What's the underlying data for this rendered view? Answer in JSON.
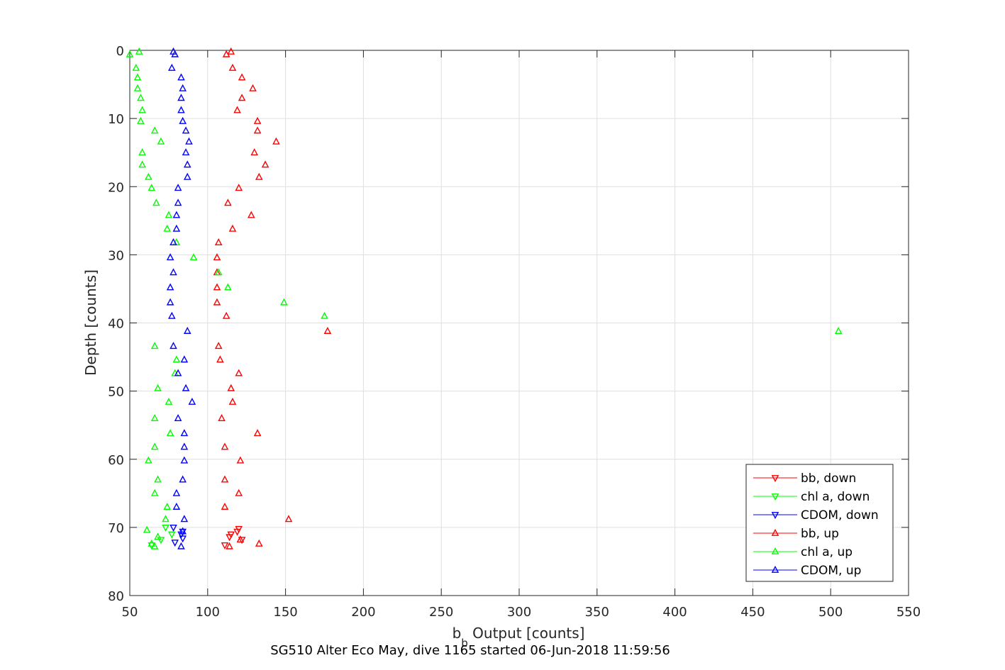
{
  "chart_data": {
    "type": "scatter",
    "title": "",
    "caption": "SG510 Alter Eco May, dive 1165 started 06-Jun-2018 11:59:56",
    "xlabel_main": "b",
    "xlabel_sub": "b",
    "xlabel_rest": " Output [counts]",
    "ylabel": "Depth [counts]",
    "xlim": [
      50,
      550
    ],
    "ylim": [
      0,
      80
    ],
    "y_reversed": true,
    "grid": true,
    "x_ticks": [
      "50",
      "100",
      "150",
      "200",
      "250",
      "300",
      "350",
      "400",
      "450",
      "500",
      "550"
    ],
    "y_ticks": [
      "0",
      "10",
      "20",
      "30",
      "40",
      "50",
      "60",
      "70",
      "80"
    ],
    "legend_position": "bottom-right",
    "series": [
      {
        "name": "bb, down",
        "color": "#ff0000",
        "marker": "triangle-down",
        "points": [
          [
            120,
            70.2
          ],
          [
            119,
            70.6
          ],
          [
            115,
            71.0
          ],
          [
            114,
            71.4
          ],
          [
            122,
            71.8
          ],
          [
            111,
            72.6
          ]
        ]
      },
      {
        "name": "chl a, down",
        "color": "#00ff00",
        "marker": "triangle-down",
        "points": [
          [
            73,
            70.0
          ],
          [
            77,
            71.0
          ],
          [
            70,
            71.8
          ],
          [
            64,
            72.6
          ]
        ]
      },
      {
        "name": "CDOM, down",
        "color": "#0000ff",
        "marker": "triangle-down",
        "points": [
          [
            78,
            70.0
          ],
          [
            84,
            70.6
          ],
          [
            83,
            71.0
          ],
          [
            84,
            71.6
          ],
          [
            79,
            72.2
          ]
        ]
      },
      {
        "name": "bb, up",
        "color": "#ff0000",
        "marker": "triangle-up",
        "points": [
          [
            115,
            0.2
          ],
          [
            112,
            0.6
          ],
          [
            116,
            2.6
          ],
          [
            122,
            4.0
          ],
          [
            129,
            5.6
          ],
          [
            122,
            7.0
          ],
          [
            119,
            8.8
          ],
          [
            132,
            10.4
          ],
          [
            132,
            11.8
          ],
          [
            144,
            13.4
          ],
          [
            130,
            15.0
          ],
          [
            137,
            16.8
          ],
          [
            133,
            18.6
          ],
          [
            120,
            20.2
          ],
          [
            113,
            22.4
          ],
          [
            128,
            24.2
          ],
          [
            116,
            26.2
          ],
          [
            107,
            28.2
          ],
          [
            106,
            30.4
          ],
          [
            106,
            32.6
          ],
          [
            106,
            34.8
          ],
          [
            106,
            37.0
          ],
          [
            112,
            39.0
          ],
          [
            177,
            41.2
          ],
          [
            107,
            43.4
          ],
          [
            108,
            45.4
          ],
          [
            120,
            47.4
          ],
          [
            115,
            49.6
          ],
          [
            116,
            51.6
          ],
          [
            109,
            54.0
          ],
          [
            132,
            56.2
          ],
          [
            111,
            58.2
          ],
          [
            121,
            60.2
          ],
          [
            111,
            63.0
          ],
          [
            120,
            65.0
          ],
          [
            111,
            67.0
          ],
          [
            152,
            68.8
          ],
          [
            121,
            71.8
          ],
          [
            133,
            72.4
          ],
          [
            114,
            72.8
          ]
        ]
      },
      {
        "name": "chl a, up",
        "color": "#00ff00",
        "marker": "triangle-up",
        "points": [
          [
            56,
            0.2
          ],
          [
            50,
            0.6
          ],
          [
            54,
            2.6
          ],
          [
            55,
            4.0
          ],
          [
            55,
            5.6
          ],
          [
            57,
            7.0
          ],
          [
            58,
            8.8
          ],
          [
            57,
            10.4
          ],
          [
            66,
            11.8
          ],
          [
            70,
            13.4
          ],
          [
            58,
            15.0
          ],
          [
            58,
            16.8
          ],
          [
            62,
            18.6
          ],
          [
            64,
            20.2
          ],
          [
            67,
            22.4
          ],
          [
            75,
            24.2
          ],
          [
            74,
            26.2
          ],
          [
            80,
            28.2
          ],
          [
            91,
            30.4
          ],
          [
            107,
            32.6
          ],
          [
            113,
            34.8
          ],
          [
            149,
            37.0
          ],
          [
            175,
            39.0
          ],
          [
            505,
            41.2
          ],
          [
            66,
            43.4
          ],
          [
            80,
            45.4
          ],
          [
            79,
            47.4
          ],
          [
            68,
            49.6
          ],
          [
            75,
            51.6
          ],
          [
            66,
            54.0
          ],
          [
            76,
            56.2
          ],
          [
            66,
            58.2
          ],
          [
            62,
            60.2
          ],
          [
            68,
            63.0
          ],
          [
            66,
            65.0
          ],
          [
            74,
            67.0
          ],
          [
            73,
            68.8
          ],
          [
            61,
            70.4
          ],
          [
            68,
            71.4
          ],
          [
            64,
            72.4
          ],
          [
            66,
            72.8
          ]
        ]
      },
      {
        "name": "CDOM, up",
        "color": "#0000ff",
        "marker": "triangle-up",
        "points": [
          [
            78,
            0.2
          ],
          [
            79,
            0.6
          ],
          [
            77,
            2.6
          ],
          [
            83,
            4.0
          ],
          [
            84,
            5.6
          ],
          [
            83,
            7.0
          ],
          [
            83,
            8.8
          ],
          [
            84,
            10.4
          ],
          [
            86,
            11.8
          ],
          [
            88,
            13.4
          ],
          [
            86,
            15.0
          ],
          [
            87,
            16.8
          ],
          [
            87,
            18.6
          ],
          [
            81,
            20.2
          ],
          [
            81,
            22.4
          ],
          [
            80,
            24.2
          ],
          [
            80,
            26.2
          ],
          [
            78,
            28.2
          ],
          [
            76,
            30.4
          ],
          [
            78,
            32.6
          ],
          [
            76,
            34.8
          ],
          [
            76,
            37.0
          ],
          [
            77,
            39.0
          ],
          [
            87,
            41.2
          ],
          [
            78,
            43.4
          ],
          [
            85,
            45.4
          ],
          [
            81,
            47.4
          ],
          [
            86,
            49.6
          ],
          [
            90,
            51.6
          ],
          [
            81,
            54.0
          ],
          [
            85,
            56.2
          ],
          [
            85,
            58.2
          ],
          [
            85,
            60.2
          ],
          [
            84,
            63.0
          ],
          [
            80,
            65.0
          ],
          [
            80,
            67.0
          ],
          [
            85,
            68.8
          ],
          [
            84,
            70.6
          ],
          [
            83,
            72.8
          ]
        ]
      }
    ]
  }
}
